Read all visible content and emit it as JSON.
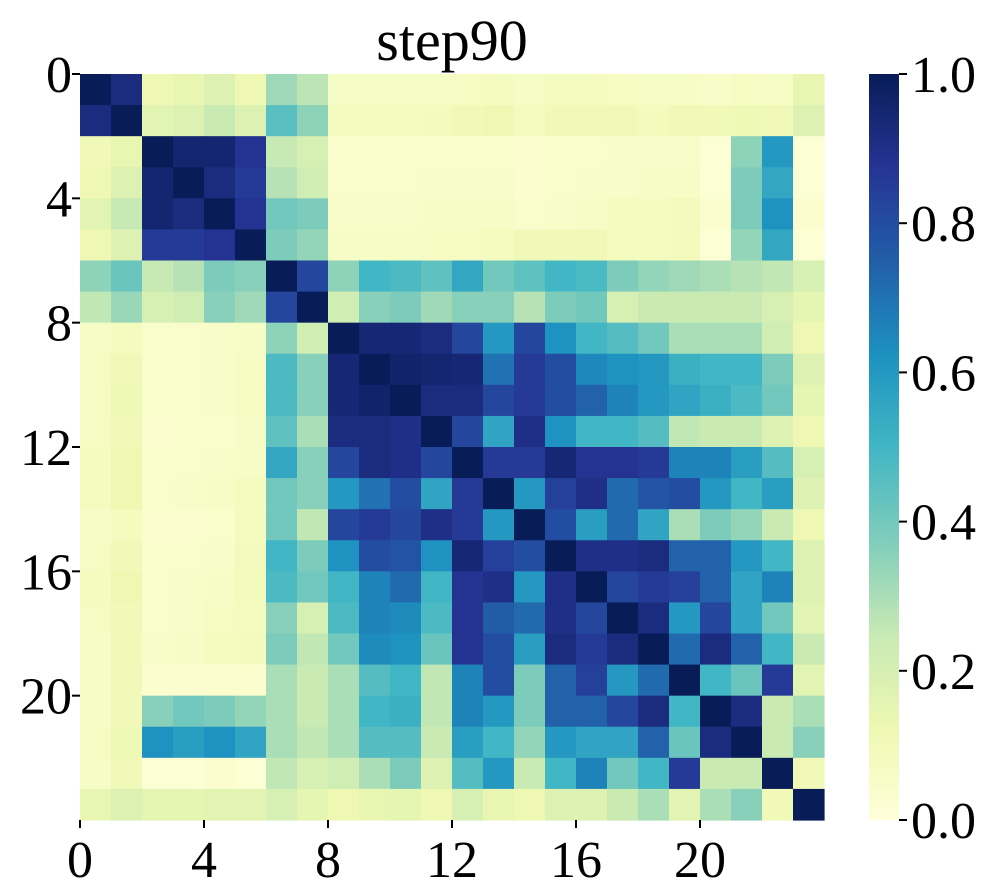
{
  "chart_data": {
    "type": "heatmap",
    "title": "step90",
    "xlabel": "",
    "ylabel": "",
    "x_tick_labels": [
      "0",
      "4",
      "8",
      "12",
      "16",
      "20"
    ],
    "y_tick_labels": [
      "0",
      "4",
      "8",
      "12",
      "16",
      "20"
    ],
    "tick_indices": [
      0,
      4,
      8,
      12,
      16,
      20
    ],
    "colorbar_tick_labels": [
      "1.0",
      "0.8",
      "0.6",
      "0.4",
      "0.2",
      "0.0"
    ],
    "colorbar_tick_values": [
      1.0,
      0.8,
      0.6,
      0.4,
      0.2,
      0.0
    ],
    "value_range": [
      0.0,
      1.0
    ],
    "colormap": "YlGnBu",
    "colormap_stops": [
      "#ffffd9",
      "#edf8b1",
      "#c7e9b4",
      "#7fcdbb",
      "#41b6c4",
      "#1d91c0",
      "#225ea8",
      "#253494",
      "#081d58"
    ],
    "cells": [
      [
        1.0,
        0.92,
        0.12,
        0.14,
        0.18,
        0.12,
        0.32,
        0.27,
        0.06,
        0.06,
        0.06,
        0.06,
        0.07,
        0.08,
        0.06,
        0.08,
        0.08,
        0.07,
        0.06,
        0.06,
        0.05,
        0.07,
        0.06,
        0.14
      ],
      [
        0.92,
        1.0,
        0.16,
        0.18,
        0.24,
        0.18,
        0.45,
        0.35,
        0.08,
        0.08,
        0.08,
        0.09,
        0.1,
        0.12,
        0.08,
        0.1,
        0.1,
        0.1,
        0.09,
        0.1,
        0.1,
        0.11,
        0.1,
        0.18
      ],
      [
        0.1,
        0.14,
        1.0,
        0.95,
        0.95,
        0.88,
        0.25,
        0.2,
        0.04,
        0.04,
        0.04,
        0.04,
        0.04,
        0.04,
        0.03,
        0.04,
        0.04,
        0.05,
        0.05,
        0.05,
        0.02,
        0.35,
        0.6,
        0.02
      ],
      [
        0.12,
        0.18,
        0.95,
        1.0,
        0.92,
        0.86,
        0.28,
        0.22,
        0.04,
        0.04,
        0.04,
        0.05,
        0.05,
        0.05,
        0.03,
        0.04,
        0.05,
        0.05,
        0.06,
        0.06,
        0.02,
        0.38,
        0.55,
        0.02
      ],
      [
        0.16,
        0.25,
        0.95,
        0.92,
        1.0,
        0.88,
        0.4,
        0.38,
        0.05,
        0.05,
        0.05,
        0.06,
        0.06,
        0.06,
        0.04,
        0.05,
        0.06,
        0.08,
        0.08,
        0.09,
        0.03,
        0.38,
        0.62,
        0.03
      ],
      [
        0.12,
        0.18,
        0.86,
        0.86,
        0.88,
        1.0,
        0.38,
        0.34,
        0.06,
        0.06,
        0.06,
        0.07,
        0.07,
        0.08,
        0.1,
        0.1,
        0.1,
        0.08,
        0.08,
        0.09,
        0.02,
        0.34,
        0.55,
        0.02
      ],
      [
        0.35,
        0.42,
        0.25,
        0.28,
        0.38,
        0.36,
        1.0,
        0.82,
        0.35,
        0.5,
        0.48,
        0.44,
        0.55,
        0.4,
        0.44,
        0.5,
        0.48,
        0.38,
        0.34,
        0.32,
        0.3,
        0.28,
        0.26,
        0.2
      ],
      [
        0.26,
        0.33,
        0.2,
        0.22,
        0.36,
        0.32,
        0.82,
        1.0,
        0.22,
        0.36,
        0.38,
        0.32,
        0.36,
        0.36,
        0.28,
        0.38,
        0.4,
        0.2,
        0.24,
        0.24,
        0.24,
        0.24,
        0.2,
        0.15
      ],
      [
        0.06,
        0.08,
        0.04,
        0.04,
        0.05,
        0.06,
        0.35,
        0.22,
        1.0,
        0.94,
        0.94,
        0.92,
        0.82,
        0.6,
        0.82,
        0.62,
        0.5,
        0.46,
        0.4,
        0.3,
        0.3,
        0.3,
        0.22,
        0.12
      ],
      [
        0.07,
        0.1,
        0.04,
        0.04,
        0.05,
        0.07,
        0.48,
        0.36,
        0.94,
        1.0,
        0.96,
        0.95,
        0.94,
        0.7,
        0.86,
        0.8,
        0.65,
        0.62,
        0.6,
        0.52,
        0.5,
        0.5,
        0.38,
        0.18
      ],
      [
        0.07,
        0.11,
        0.04,
        0.04,
        0.05,
        0.07,
        0.48,
        0.36,
        0.94,
        0.96,
        1.0,
        0.92,
        0.92,
        0.82,
        0.86,
        0.8,
        0.74,
        0.66,
        0.6,
        0.56,
        0.52,
        0.48,
        0.4,
        0.15
      ],
      [
        0.07,
        0.1,
        0.03,
        0.04,
        0.04,
        0.06,
        0.44,
        0.3,
        0.92,
        0.92,
        0.9,
        1.0,
        0.82,
        0.56,
        0.9,
        0.62,
        0.5,
        0.5,
        0.46,
        0.26,
        0.24,
        0.24,
        0.18,
        0.12
      ],
      [
        0.08,
        0.12,
        0.04,
        0.04,
        0.05,
        0.06,
        0.55,
        0.36,
        0.82,
        0.92,
        0.9,
        0.82,
        1.0,
        0.86,
        0.86,
        0.94,
        0.88,
        0.88,
        0.86,
        0.66,
        0.66,
        0.58,
        0.46,
        0.2
      ],
      [
        0.08,
        0.12,
        0.04,
        0.05,
        0.06,
        0.08,
        0.4,
        0.36,
        0.6,
        0.7,
        0.8,
        0.56,
        0.86,
        1.0,
        0.6,
        0.84,
        0.9,
        0.72,
        0.78,
        0.8,
        0.6,
        0.5,
        0.58,
        0.18
      ],
      [
        0.06,
        0.08,
        0.03,
        0.03,
        0.04,
        0.08,
        0.4,
        0.26,
        0.82,
        0.86,
        0.82,
        0.9,
        0.86,
        0.6,
        1.0,
        0.8,
        0.58,
        0.72,
        0.56,
        0.3,
        0.38,
        0.34,
        0.24,
        0.12
      ],
      [
        0.07,
        0.1,
        0.04,
        0.04,
        0.05,
        0.09,
        0.5,
        0.38,
        0.62,
        0.8,
        0.78,
        0.62,
        0.94,
        0.84,
        0.8,
        1.0,
        0.9,
        0.9,
        0.92,
        0.74,
        0.74,
        0.6,
        0.5,
        0.18
      ],
      [
        0.08,
        0.12,
        0.04,
        0.05,
        0.06,
        0.09,
        0.48,
        0.4,
        0.5,
        0.66,
        0.72,
        0.5,
        0.88,
        0.9,
        0.6,
        0.9,
        1.0,
        0.82,
        0.86,
        0.84,
        0.74,
        0.56,
        0.66,
        0.18
      ],
      [
        0.07,
        0.1,
        0.04,
        0.05,
        0.07,
        0.08,
        0.36,
        0.2,
        0.48,
        0.66,
        0.64,
        0.48,
        0.88,
        0.76,
        0.72,
        0.9,
        0.82,
        1.0,
        0.92,
        0.6,
        0.82,
        0.56,
        0.4,
        0.16
      ],
      [
        0.06,
        0.1,
        0.05,
        0.06,
        0.08,
        0.09,
        0.38,
        0.26,
        0.4,
        0.64,
        0.62,
        0.42,
        0.88,
        0.8,
        0.58,
        0.92,
        0.86,
        0.92,
        1.0,
        0.72,
        0.92,
        0.74,
        0.5,
        0.24
      ],
      [
        0.06,
        0.1,
        0.03,
        0.03,
        0.03,
        0.03,
        0.3,
        0.24,
        0.3,
        0.46,
        0.5,
        0.26,
        0.66,
        0.8,
        0.38,
        0.74,
        0.84,
        0.6,
        0.72,
        1.0,
        0.5,
        0.42,
        0.86,
        0.16
      ],
      [
        0.06,
        0.1,
        0.36,
        0.4,
        0.38,
        0.34,
        0.3,
        0.24,
        0.3,
        0.5,
        0.52,
        0.26,
        0.66,
        0.6,
        0.38,
        0.74,
        0.74,
        0.82,
        0.92,
        0.5,
        1.0,
        0.92,
        0.24,
        0.3
      ],
      [
        0.07,
        0.11,
        0.62,
        0.58,
        0.62,
        0.56,
        0.3,
        0.26,
        0.3,
        0.46,
        0.46,
        0.24,
        0.58,
        0.5,
        0.34,
        0.6,
        0.56,
        0.56,
        0.74,
        0.42,
        0.92,
        1.0,
        0.24,
        0.36
      ],
      [
        0.06,
        0.1,
        0.02,
        0.02,
        0.03,
        0.02,
        0.26,
        0.2,
        0.22,
        0.3,
        0.38,
        0.18,
        0.46,
        0.6,
        0.24,
        0.5,
        0.66,
        0.4,
        0.5,
        0.86,
        0.24,
        0.24,
        1.0,
        0.1
      ],
      [
        0.14,
        0.18,
        0.15,
        0.15,
        0.16,
        0.16,
        0.2,
        0.15,
        0.12,
        0.14,
        0.15,
        0.12,
        0.2,
        0.14,
        0.12,
        0.18,
        0.18,
        0.24,
        0.3,
        0.16,
        0.3,
        0.36,
        0.1,
        1.0
      ]
    ]
  }
}
